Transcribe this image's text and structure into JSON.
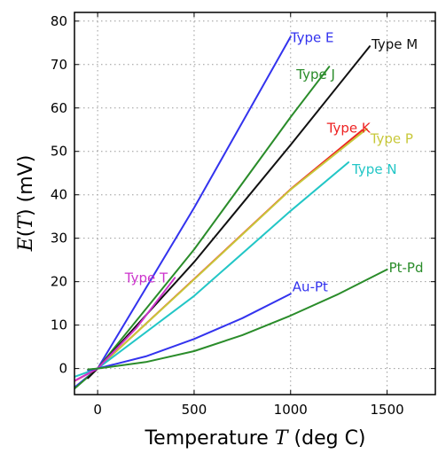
{
  "chart_data": {
    "type": "line",
    "title": "",
    "xlabel_prefix": "Temperature ",
    "xlabel_var": "T",
    "xlabel_suffix": " (deg C)",
    "ylabel_func": "E",
    "ylabel_open": "(",
    "ylabel_var": "T",
    "ylabel_close": ") (mV)",
    "xlim": [
      -120,
      1750
    ],
    "ylim": [
      -6,
      82
    ],
    "xticks": [
      0,
      500,
      1000,
      1500
    ],
    "yticks": [
      0,
      10,
      20,
      30,
      40,
      50,
      60,
      70,
      80
    ],
    "grid": true,
    "series": [
      {
        "name": "Type E",
        "color": "#3333ee",
        "x": [
          -270,
          0,
          500,
          1000
        ],
        "y": [
          -9.8,
          0,
          37,
          76.4
        ]
      },
      {
        "name": "Type J",
        "color": "#2a8c2a",
        "x": [
          -210,
          0,
          500,
          1000,
          1200
        ],
        "y": [
          -8.1,
          0,
          27.4,
          57.9,
          69.5
        ]
      },
      {
        "name": "Type M",
        "color": "#111111",
        "x": [
          -50,
          0,
          500,
          1000,
          1410
        ],
        "y": [
          -2.2,
          0,
          24.5,
          51.5,
          74.2
        ]
      },
      {
        "name": "Type K",
        "color": "#ee2222",
        "x": [
          -270,
          0,
          500,
          1000,
          1372
        ],
        "y": [
          -6.5,
          0,
          20.6,
          41.3,
          54.9
        ]
      },
      {
        "name": "Type P",
        "color": "#c8c83a",
        "x": [
          0,
          500,
          1000,
          1395
        ],
        "y": [
          0,
          20.5,
          41.2,
          55.2
        ]
      },
      {
        "name": "Type N",
        "color": "#22c6c6",
        "x": [
          -270,
          0,
          500,
          1000,
          1300
        ],
        "y": [
          -4.3,
          0,
          16.7,
          36.3,
          47.5
        ]
      },
      {
        "name": "Type T",
        "color": "#cc33cc",
        "x": [
          -270,
          0,
          200,
          400
        ],
        "y": [
          -6.3,
          0,
          9.3,
          20.9
        ]
      },
      {
        "name": "Au-Pt",
        "color": "#3333ee",
        "x": [
          -50,
          0,
          250,
          500,
          750,
          1000
        ],
        "y": [
          -0.4,
          0,
          2.8,
          6.8,
          11.6,
          17.2
        ]
      },
      {
        "name": "Pt-Pd",
        "color": "#2a8c2a",
        "x": [
          -50,
          0,
          250,
          500,
          750,
          1000,
          1250,
          1500
        ],
        "y": [
          -0.2,
          0,
          1.5,
          4.0,
          7.7,
          12.2,
          17.2,
          22.8
        ]
      }
    ]
  }
}
